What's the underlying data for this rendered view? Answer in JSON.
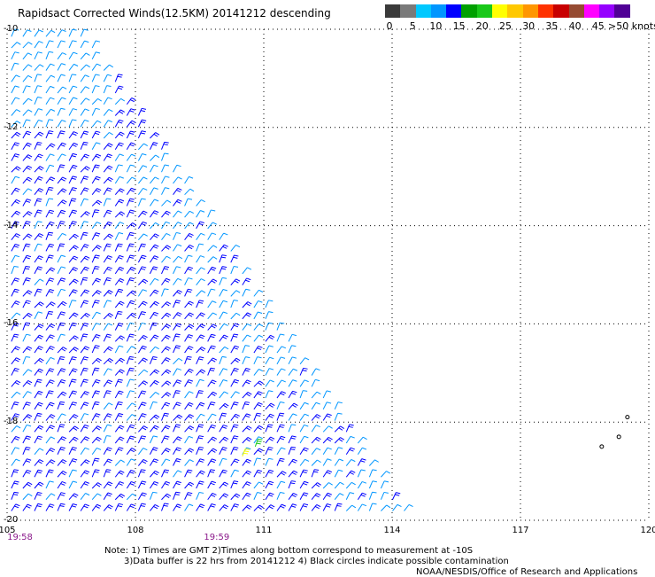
{
  "title": "Rapidsact Corrected Winds(12.5KM) 20141212 descending",
  "legend": {
    "colors": [
      "#3a3a3a",
      "#7a7a7a",
      "#00c8ff",
      "#0096ff",
      "#0000ff",
      "#00a000",
      "#19c819",
      "#ffff00",
      "#ffc800",
      "#ff9600",
      "#ff3200",
      "#c80000",
      "#964b32",
      "#ff00ff",
      "#9600ff",
      "#500096"
    ],
    "labels": [
      "0",
      "5",
      "10",
      "15",
      "20",
      "25",
      "30",
      "35",
      "40",
      "45"
    ],
    "unit": ">50 knots"
  },
  "axes": {
    "lat_labels": [
      "-10",
      "-12",
      "-14",
      "-16",
      "-18",
      "-20"
    ],
    "lon_labels": [
      "105",
      "108",
      "111",
      "114",
      "117",
      "120"
    ]
  },
  "times": [
    "19:58",
    "19:59"
  ],
  "notes": [
    "Note: 1) Times are GMT 2)Times along bottom correspond to measurement at -10S",
    "3)Data buffer is 22 hrs from 20141212 4) Black circles indicate possible contamination",
    "NOAA/NESDIS/Office of Research and Applications"
  ],
  "chart_data": {
    "type": "scatter",
    "title": "Rapidsact Corrected Winds(12.5KM) 20141212 descending",
    "xlabel": "",
    "ylabel": "",
    "xlim": [
      105,
      120
    ],
    "ylim": [
      -20,
      -10
    ],
    "x_ticks": [
      105,
      108,
      111,
      114,
      117,
      120
    ],
    "y_ticks": [
      -10,
      -12,
      -14,
      -16,
      -18,
      -20
    ],
    "grid": true,
    "swath": {
      "description_units": "lon/lat",
      "polygon": [
        [
          105.0,
          -10.0
        ],
        [
          106.8,
          -10.0
        ],
        [
          114.5,
          -20.0
        ],
        [
          105.0,
          -20.0
        ]
      ]
    },
    "wind_regions": [
      {
        "name": "north-blue",
        "lon_range": [
          105.0,
          107.5
        ],
        "lat_range": [
          -12.0,
          -10.0
        ],
        "speed_knots": 13
      },
      {
        "name": "east-blue-band",
        "offset_from_edge_deg": [
          0.0,
          1.6
        ],
        "lat_range": [
          -20.0,
          -12.0
        ],
        "speed_knots": 14
      },
      {
        "name": "central-green",
        "lon_range": [
          105.0,
          112.0
        ],
        "lat_range": [
          -20.0,
          -12.0
        ],
        "speed_knots": 17
      }
    ],
    "highlights": [
      {
        "lon": 110.5,
        "lat": -18.7,
        "speed_knots": 31
      },
      {
        "lon": 110.8,
        "lat": -18.5,
        "speed_knots": 29
      }
    ],
    "isolated": [
      {
        "lon": 118.9,
        "lat": -18.5,
        "speed_knots": 0
      },
      {
        "lon": 119.3,
        "lat": -18.3,
        "speed_knots": 0
      },
      {
        "lon": 119.5,
        "lat": -17.9,
        "speed_knots": 0
      }
    ]
  }
}
